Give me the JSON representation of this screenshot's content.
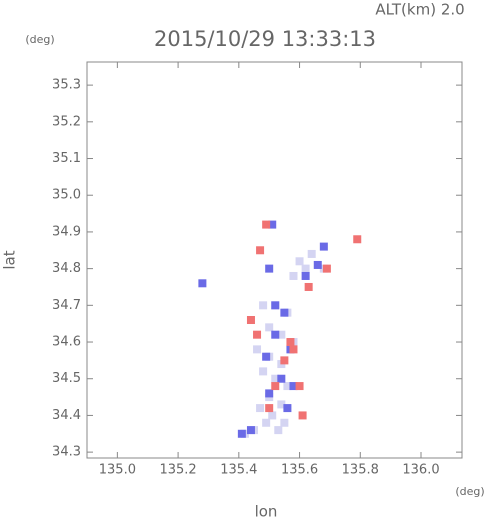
{
  "chart_data": {
    "type": "scatter",
    "title": "2015/10/29 13:33:13",
    "subtitle": "ALT(km) 2.0",
    "x_label": "lon",
    "y_label": "lat",
    "x_unit": "(deg)",
    "y_unit": "(deg)",
    "xlim": [
      134.9,
      136.135
    ],
    "ylim": [
      34.284,
      35.363
    ],
    "xticks": [
      {
        "value": 135,
        "label": "135.0"
      },
      135.2,
      135.4,
      135.6,
      135.8,
      {
        "value": 136,
        "label": "136.0"
      }
    ],
    "yticks": [
      34.3,
      34.4,
      34.5,
      34.6,
      34.7,
      34.8,
      34.9,
      {
        "value": 35,
        "label": "35.0"
      },
      35.1,
      35.2,
      35.3
    ],
    "series": [
      {
        "color": "#d4d4f2",
        "x": [
          135.48,
          135.52,
          135.56,
          135.5,
          135.54,
          135.58,
          135.46,
          135.5,
          135.54,
          135.48,
          135.52,
          135.56,
          135.5,
          135.54,
          135.47,
          135.51,
          135.55,
          135.49,
          135.53,
          135.45,
          135.42,
          135.6,
          135.62,
          135.58,
          135.64,
          135.68
        ],
        "y": [
          34.7,
          34.7,
          34.68,
          34.64,
          34.62,
          34.6,
          34.58,
          34.56,
          34.54,
          34.52,
          34.5,
          34.48,
          34.45,
          34.43,
          34.42,
          34.4,
          34.38,
          34.38,
          34.36,
          34.36,
          34.35,
          34.82,
          34.8,
          34.78,
          34.84,
          34.8
        ]
      },
      {
        "color": "#6a6ae6",
        "x": [
          135.51,
          135.55,
          135.52,
          135.57,
          135.49,
          135.54,
          135.5,
          135.56,
          135.44,
          135.41,
          135.5,
          135.62,
          135.66,
          135.58,
          135.28,
          135.52,
          135.68
        ],
        "y": [
          34.92,
          34.68,
          34.62,
          34.58,
          34.56,
          34.5,
          34.46,
          34.42,
          34.36,
          34.35,
          34.8,
          34.78,
          34.81,
          34.48,
          34.76,
          34.7,
          34.86
        ]
      },
      {
        "color": "#f07272",
        "x": [
          135.49,
          135.58,
          135.46,
          135.55,
          135.6,
          135.52,
          135.61,
          135.5,
          135.57,
          135.69,
          135.79,
          135.47,
          135.63,
          135.44
        ],
        "y": [
          34.92,
          34.58,
          34.62,
          34.55,
          34.48,
          34.48,
          34.4,
          34.42,
          34.6,
          34.8,
          34.88,
          34.85,
          34.75,
          34.66
        ]
      }
    ]
  }
}
